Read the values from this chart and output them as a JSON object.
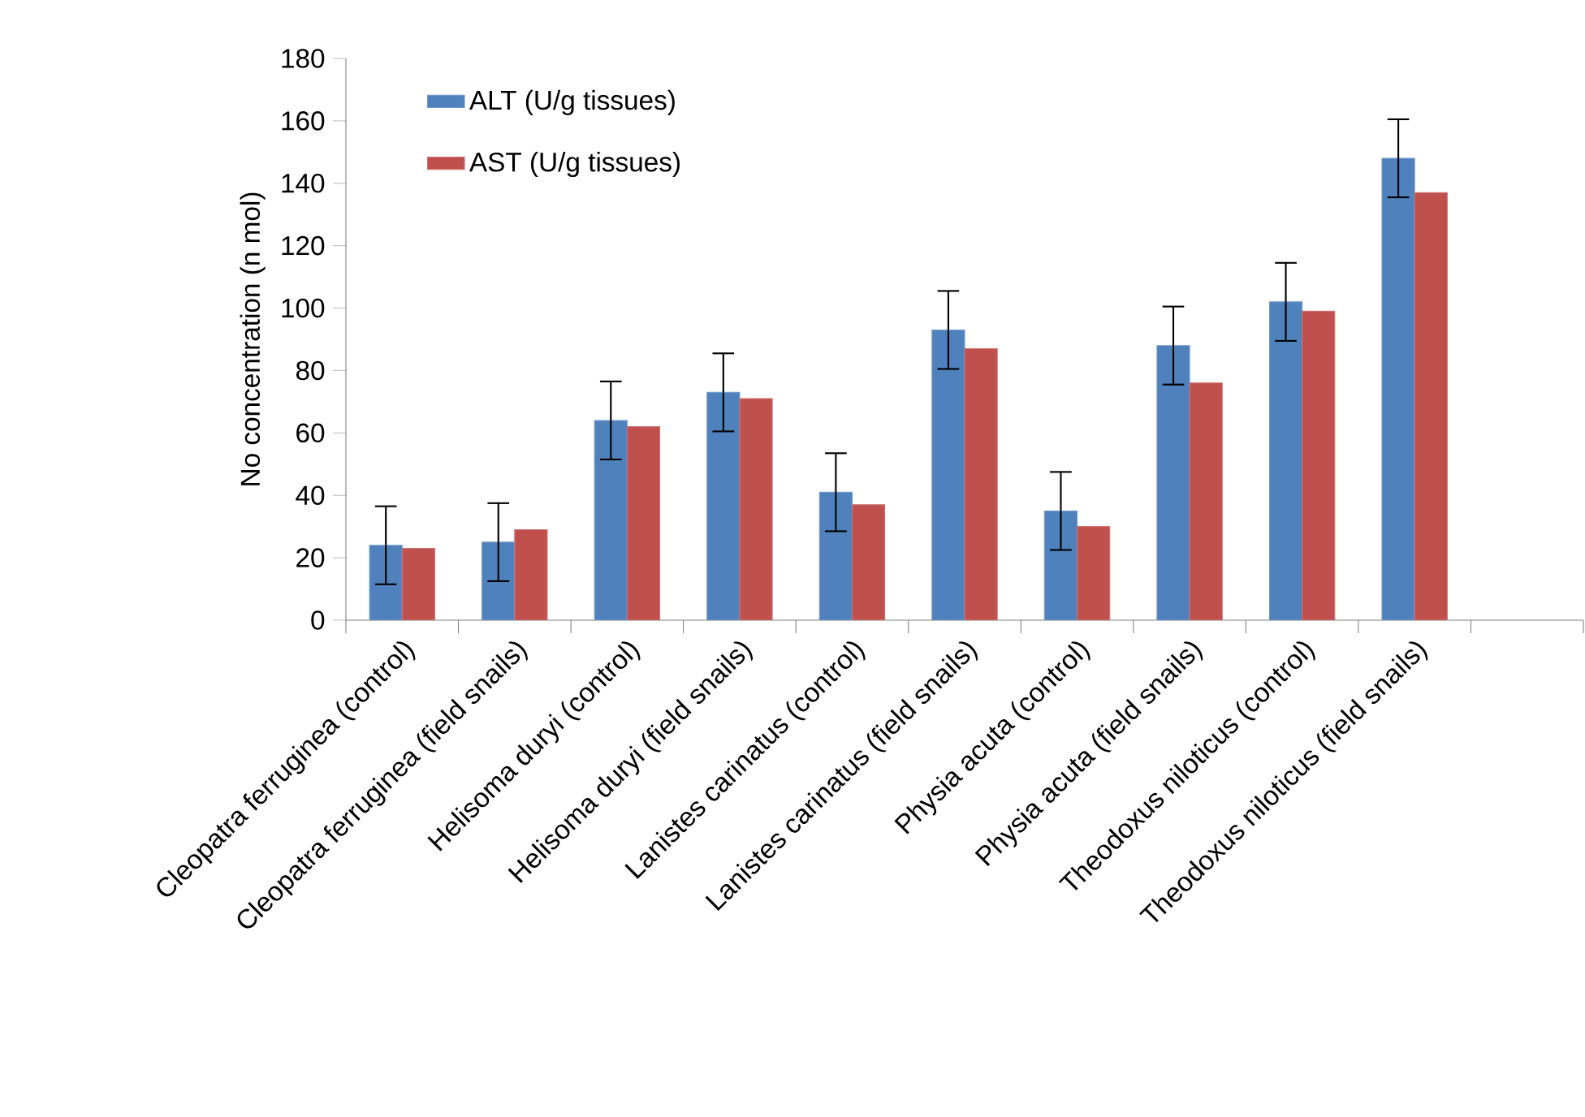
{
  "chart_data": {
    "type": "bar",
    "ylabel": "No concentration (n mol)",
    "categories": [
      "Cleopatra ferruginea (control)",
      "Cleopatra ferruginea (field snails)",
      "Helisoma duryi (control)",
      "Helisoma duryi (field snails)",
      "Lanistes carinatus (control)",
      "Lanistes carinatus (field snails)",
      "Physia acuta (control)",
      "Physia acuta (field snails)",
      "Theodoxus niloticus (control)",
      "Theodoxus niloticus (field snails)",
      null
    ],
    "series": [
      {
        "name": "ALT (U/g tissues)",
        "color": "#4f81bd",
        "values": [
          24,
          25,
          64,
          73,
          41,
          93,
          35,
          88,
          102,
          148,
          null
        ],
        "errors": [
          12.5,
          12.5,
          12.5,
          12.5,
          12.5,
          12.5,
          12.5,
          12.5,
          12.5,
          12.5,
          null
        ]
      },
      {
        "name": "AST (U/g tissues)",
        "color": "#c0504d",
        "values": [
          23,
          29,
          62,
          71,
          37,
          87,
          30,
          76,
          99,
          137,
          null
        ]
      }
    ],
    "ylim": [
      0,
      180
    ],
    "yticks": [
      0,
      20,
      40,
      60,
      80,
      100,
      120,
      140,
      160,
      180
    ],
    "grid": false,
    "legend": "top left"
  }
}
